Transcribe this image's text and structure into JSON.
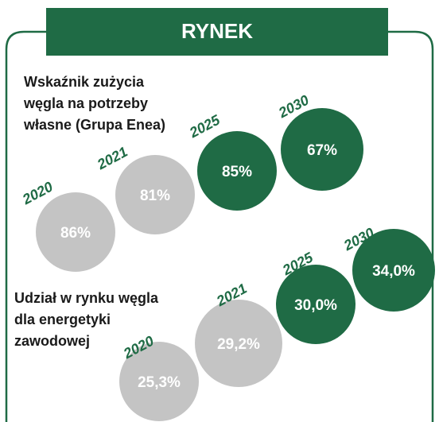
{
  "header": {
    "title": "RYNEK"
  },
  "sections": [
    {
      "title_lines": [
        "Wskaźnik zużycia",
        "węgla na potrzeby",
        "własne (Grupa Enea)"
      ],
      "items": [
        {
          "year": "2020",
          "value": "86%",
          "color": "#c4c4c4"
        },
        {
          "year": "2021",
          "value": "81%",
          "color": "#c4c4c4"
        },
        {
          "year": "2025",
          "value": "85%",
          "color": "#1f6b45"
        },
        {
          "year": "2030",
          "value": "67%",
          "color": "#1f6b45"
        }
      ]
    },
    {
      "title_lines": [
        "Udział w rynku węgla",
        "dla energetyki",
        "zawodowej"
      ],
      "items": [
        {
          "year": "2020",
          "value": "25,3%",
          "color": "#c4c4c4"
        },
        {
          "year": "2021",
          "value": "29,2%",
          "color": "#c4c4c4"
        },
        {
          "year": "2025",
          "value": "30,0%",
          "color": "#1f6b45"
        },
        {
          "year": "2030",
          "value": "34,0%",
          "color": "#1f6b45"
        }
      ]
    }
  ]
}
